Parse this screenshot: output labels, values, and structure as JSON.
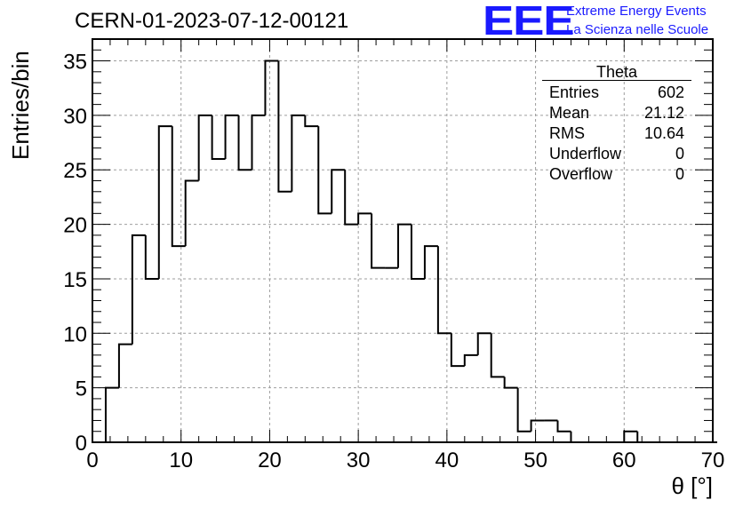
{
  "header": {
    "run_title": "CERN-01-2023-07-12-00121",
    "logo_text": "EEE",
    "logo_line1": "Extreme Energy Events",
    "logo_line2": "La Scienza nelle Scuole"
  },
  "stats_box": {
    "title": "Theta",
    "rows": [
      {
        "label": "Entries",
        "value": "602"
      },
      {
        "label": "Mean",
        "value": "21.12"
      },
      {
        "label": "RMS",
        "value": "10.64"
      },
      {
        "label": "Underflow",
        "value": "0"
      },
      {
        "label": "Overflow",
        "value": "0"
      }
    ]
  },
  "chart_data": {
    "type": "bar",
    "style": "step-histogram",
    "xlabel": "θ [°]",
    "ylabel": "Entries/bin",
    "xlim": [
      0,
      70
    ],
    "ylim": [
      0,
      37
    ],
    "xticks": [
      0,
      10,
      20,
      30,
      40,
      50,
      60,
      70
    ],
    "yticks": [
      0,
      5,
      10,
      15,
      20,
      25,
      30,
      35
    ],
    "grid": true,
    "bin_width": 1.5,
    "bin_edges_start": 0,
    "values": [
      0,
      5,
      9,
      19,
      15,
      29,
      18,
      24,
      30,
      26,
      30,
      25,
      30,
      35,
      23,
      30,
      29,
      21,
      25,
      20,
      21,
      16,
      16,
      20,
      15,
      18,
      10,
      7,
      8,
      10,
      6,
      5,
      1,
      2,
      2,
      1,
      0,
      0,
      0,
      0,
      1,
      0,
      0,
      0,
      0,
      0,
      0
    ],
    "colors": {
      "line": "#000000",
      "grid": "#9e9e9e"
    }
  }
}
